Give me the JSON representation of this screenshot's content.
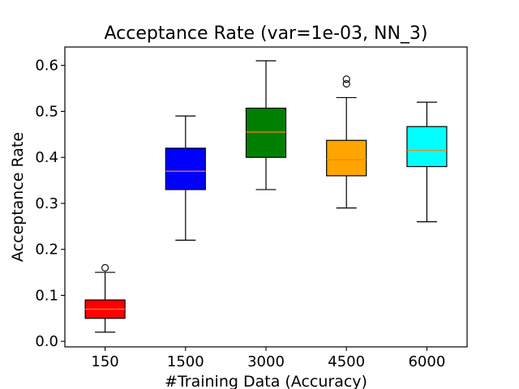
{
  "chart_data": {
    "type": "box",
    "title": "Acceptance Rate (var=1e-03, NN_3)",
    "xlabel": "#Training Data (Accuracy)",
    "ylabel": "Acceptance Rate",
    "ylim": [
      -0.012,
      0.64
    ],
    "yticks": [
      "0.0",
      "0.1",
      "0.2",
      "0.3",
      "0.4",
      "0.5",
      "0.6"
    ],
    "grid": false,
    "categories": [
      "150",
      "1500",
      "3000",
      "4500",
      "6000"
    ],
    "boxes": [
      {
        "category": "150",
        "color": "#ff0000",
        "whisker_low": 0.02,
        "q1": 0.05,
        "median": 0.07,
        "q3": 0.09,
        "whisker_high": 0.15,
        "outliers": [
          0.16
        ]
      },
      {
        "category": "1500",
        "color": "#0000ff",
        "whisker_low": 0.22,
        "q1": 0.33,
        "median": 0.37,
        "q3": 0.42,
        "whisker_high": 0.49,
        "outliers": []
      },
      {
        "category": "3000",
        "color": "#008000",
        "whisker_low": 0.33,
        "q1": 0.4,
        "median": 0.455,
        "q3": 0.507,
        "whisker_high": 0.61,
        "outliers": []
      },
      {
        "category": "4500",
        "color": "#ffa500",
        "whisker_low": 0.29,
        "q1": 0.36,
        "median": 0.395,
        "q3": 0.437,
        "whisker_high": 0.53,
        "outliers": [
          0.56,
          0.57
        ]
      },
      {
        "category": "6000",
        "color": "#00ffff",
        "whisker_low": 0.26,
        "q1": 0.38,
        "median": 0.415,
        "q3": 0.467,
        "whisker_high": 0.52,
        "outliers": []
      }
    ],
    "median_color": "#ff7f0e"
  }
}
